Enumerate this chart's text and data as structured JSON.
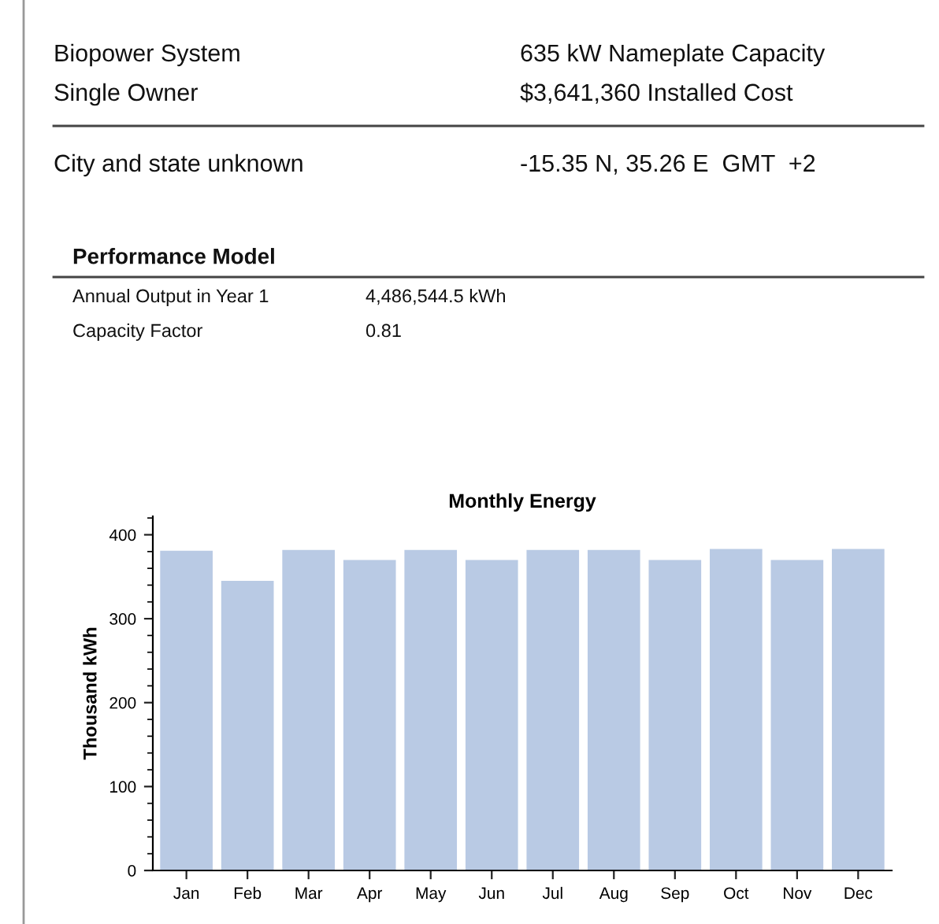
{
  "chart_data": {
    "type": "bar",
    "title": "Monthly Energy",
    "ylabel": "Thousand kWh",
    "categories": [
      "Jan",
      "Feb",
      "Mar",
      "Apr",
      "May",
      "Jun",
      "Jul",
      "Aug",
      "Sep",
      "Oct",
      "Nov",
      "Dec"
    ],
    "values": [
      381,
      345,
      382,
      370,
      382,
      370,
      382,
      382,
      370,
      383,
      370,
      383
    ],
    "color": "#b9cae4",
    "ylim": [
      0,
      422
    ],
    "yticks": [
      0,
      {
        "value": 20,
        "label": null
      },
      {
        "value": 40,
        "label": null
      },
      {
        "value": 60,
        "label": null
      },
      {
        "value": 80,
        "label": null
      },
      100,
      {
        "value": 120,
        "label": null
      },
      {
        "value": 140,
        "label": null
      },
      {
        "value": 160,
        "label": null
      },
      {
        "value": 180,
        "label": null
      },
      200,
      {
        "value": 220,
        "label": null
      },
      {
        "value": 240,
        "label": null
      },
      {
        "value": 260,
        "label": null
      },
      {
        "value": 280,
        "label": null
      },
      300,
      {
        "value": 320,
        "label": null
      },
      {
        "value": 340,
        "label": null
      },
      {
        "value": 360,
        "label": null
      },
      {
        "value": 380,
        "label": null
      },
      400,
      {
        "value": 420,
        "label": null
      }
    ],
    "grid": false,
    "legend": false,
    "annotations": [
      "Biopower System",
      "Single Owner",
      "635 kW Nameplate Capacity",
      "$3,641,360 Installed Cost",
      "City and state unknown",
      "-15.35 N, 35.26 E  GMT  +2",
      "Performance Model",
      "Annual Output in Year 1",
      "4,486,544.5 kWh",
      "Capacity Factor",
      "0.81"
    ]
  }
}
